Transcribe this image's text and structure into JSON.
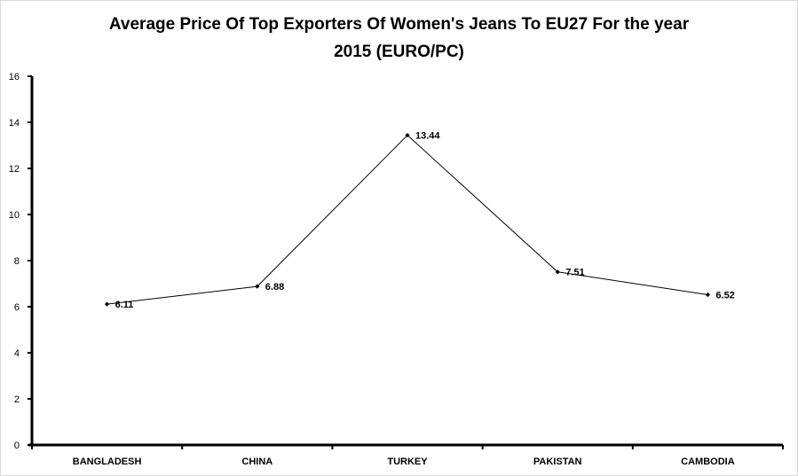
{
  "chart_data": {
    "type": "line",
    "title_line1": "Average Price Of Top Exporters Of Women's Jeans To EU27 For the year",
    "title_line2": "2015 (EURO/PC)",
    "xlabel": "",
    "ylabel": "",
    "categories": [
      "BANGLADESH",
      "CHINA",
      "TURKEY",
      "PAKISTAN",
      "CAMBODIA"
    ],
    "series": [
      {
        "values": [
          6.11,
          6.88,
          13.44,
          7.51,
          6.52
        ],
        "value_labels": [
          "6.11",
          "6.88",
          "13.44",
          "7.51",
          "6.52"
        ],
        "color": "#000000"
      }
    ],
    "ylim": [
      0,
      16
    ],
    "yticks": [
      0,
      2,
      4,
      6,
      8,
      10,
      12,
      14,
      16
    ],
    "ytick_labels": [
      "0",
      "2",
      "4",
      "6",
      "8",
      "10",
      "12",
      "14",
      "16"
    ],
    "grid": false,
    "legend": "none",
    "marker": "diamond"
  }
}
